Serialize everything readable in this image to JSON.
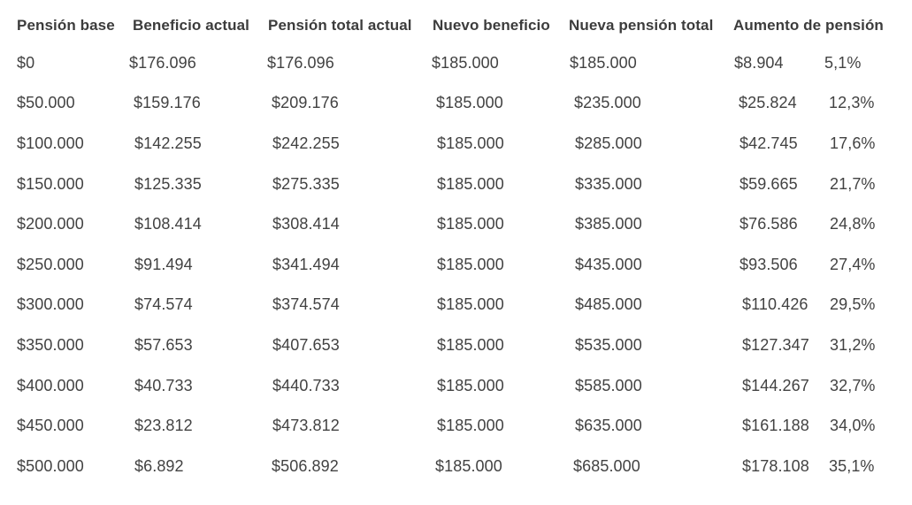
{
  "table": {
    "headers": [
      "Pensión base",
      "Beneficio actual",
      "Pensión total actual",
      "Nuevo beneficio",
      "Nueva pensión total",
      "Aumento de pensión"
    ],
    "rows": [
      {
        "base": "$0",
        "actual": "$176.096",
        "total_actual": "$176.096",
        "nuevo": "$185.000",
        "nueva_total": "$185.000",
        "aumento": "$8.904",
        "pct": "5,1%"
      },
      {
        "base": "$50.000",
        "actual": "$159.176",
        "total_actual": "$209.176",
        "nuevo": "$185.000",
        "nueva_total": "$235.000",
        "aumento": "$25.824",
        "pct": "12,3%"
      },
      {
        "base": "$100.000",
        "actual": "$142.255",
        "total_actual": "$242.255",
        "nuevo": "$185.000",
        "nueva_total": "$285.000",
        "aumento": "$42.745",
        "pct": "17,6%"
      },
      {
        "base": "$150.000",
        "actual": "$125.335",
        "total_actual": "$275.335",
        "nuevo": "$185.000",
        "nueva_total": "$335.000",
        "aumento": "$59.665",
        "pct": "21,7%"
      },
      {
        "base": "$200.000",
        "actual": "$108.414",
        "total_actual": "$308.414",
        "nuevo": "$185.000",
        "nueva_total": "$385.000",
        "aumento": "$76.586",
        "pct": "24,8%"
      },
      {
        "base": "$250.000",
        "actual": "$91.494",
        "total_actual": "$341.494",
        "nuevo": "$185.000",
        "nueva_total": "$435.000",
        "aumento": "$93.506",
        "pct": "27,4%"
      },
      {
        "base": "$300.000",
        "actual": "$74.574",
        "total_actual": "$374.574",
        "nuevo": "$185.000",
        "nueva_total": "$485.000",
        "aumento": "$110.426",
        "pct": "29,5%"
      },
      {
        "base": "$350.000",
        "actual": "$57.653",
        "total_actual": "$407.653",
        "nuevo": "$185.000",
        "nueva_total": "$535.000",
        "aumento": "$127.347",
        "pct": "31,2%"
      },
      {
        "base": "$400.000",
        "actual": "$40.733",
        "total_actual": "$440.733",
        "nuevo": "$185.000",
        "nueva_total": "$585.000",
        "aumento": "$144.267",
        "pct": "32,7%"
      },
      {
        "base": "$450.000",
        "actual": "$23.812",
        "total_actual": "$473.812",
        "nuevo": "$185.000",
        "nueva_total": "$635.000",
        "aumento": "$161.188",
        "pct": "34,0%"
      },
      {
        "base": "$500.000",
        "actual": "$6.892",
        "total_actual": "$506.892",
        "nuevo": "$185.000",
        "nueva_total": "$685.000",
        "aumento": "$178.108",
        "pct": "35,1%"
      }
    ]
  }
}
